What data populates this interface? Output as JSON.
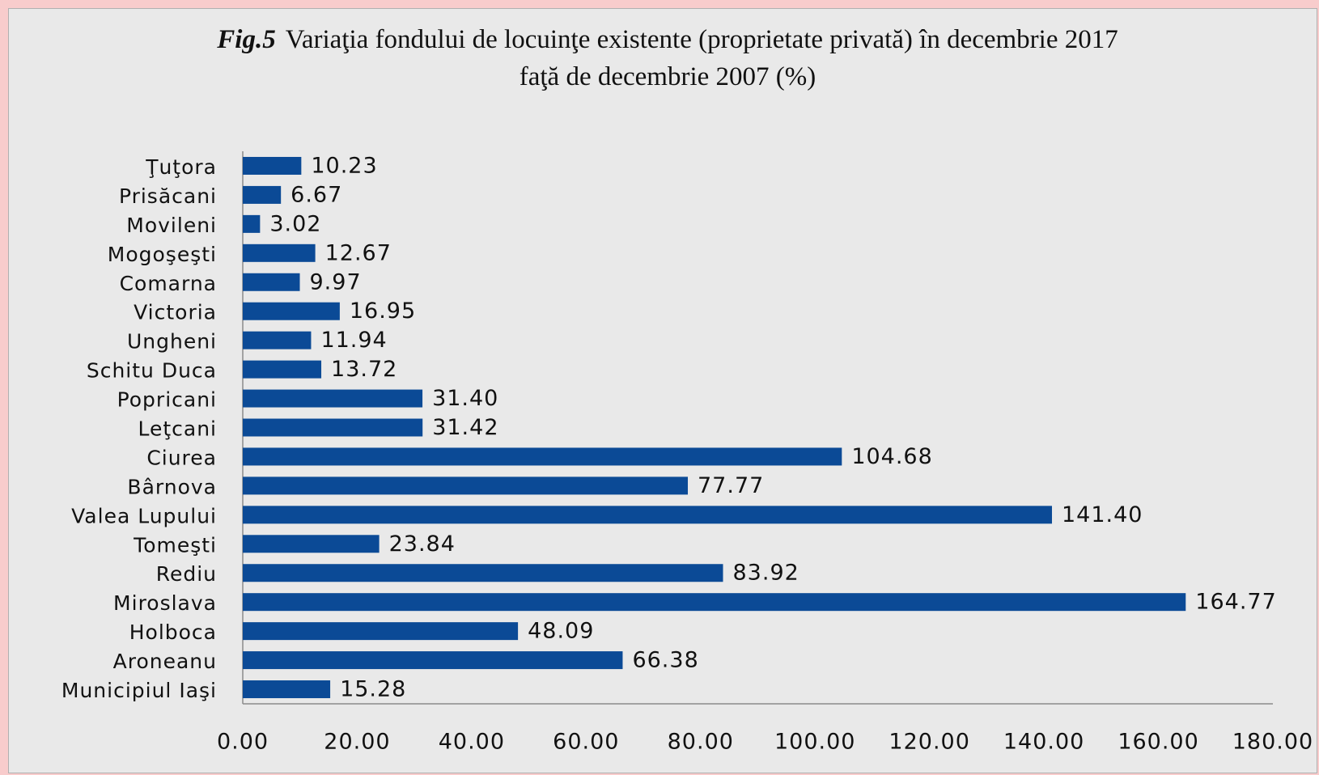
{
  "chart_data": {
    "type": "barh",
    "figure_label": "Fig.5",
    "title": "Variaţia fondului de locuinţe existente (proprietate privată) în decembrie 2017 faţă de decembrie 2007 (%)",
    "categories": [
      "Ţuţora",
      "Prisăcani",
      "Movileni",
      "Mogoşeşti",
      "Comarna",
      "Victoria",
      "Ungheni",
      "Schitu Duca",
      "Popricani",
      "Leţcani",
      "Ciurea",
      "Bârnova",
      "Valea Lupului",
      "Tomeşti",
      "Rediu",
      "Miroslava",
      "Holboca",
      "Aroneanu",
      "Municipiul Iaşi"
    ],
    "values": [
      10.23,
      6.67,
      3.02,
      12.67,
      9.97,
      16.95,
      11.94,
      13.72,
      31.4,
      31.42,
      104.68,
      77.77,
      141.4,
      23.84,
      83.92,
      164.77,
      48.09,
      66.38,
      15.28
    ],
    "value_labels": [
      "10.23",
      "6.67",
      "3.02",
      "12.67",
      "9.97",
      "16.95",
      "11.94",
      "13.72",
      "31.40",
      "31.42",
      "104.68",
      "77.77",
      "141.40",
      "23.84",
      "83.92",
      "164.77",
      "48.09",
      "66.38",
      "15.28"
    ],
    "color": "#0b4a96",
    "xlim": [
      0,
      180
    ],
    "xticks": [
      {
        "value": 0,
        "label": "0.00"
      },
      {
        "value": 20,
        "label": "20.00"
      },
      {
        "value": 40,
        "label": "40.00"
      },
      {
        "value": 60,
        "label": "60.00"
      },
      {
        "value": 80,
        "label": "80.00"
      },
      {
        "value": 100,
        "label": "100.00"
      },
      {
        "value": 120,
        "label": "120.00"
      },
      {
        "value": 140,
        "label": "140.00"
      },
      {
        "value": 160,
        "label": "160.00"
      },
      {
        "value": 180,
        "label": "180.00"
      }
    ],
    "grid": false
  }
}
